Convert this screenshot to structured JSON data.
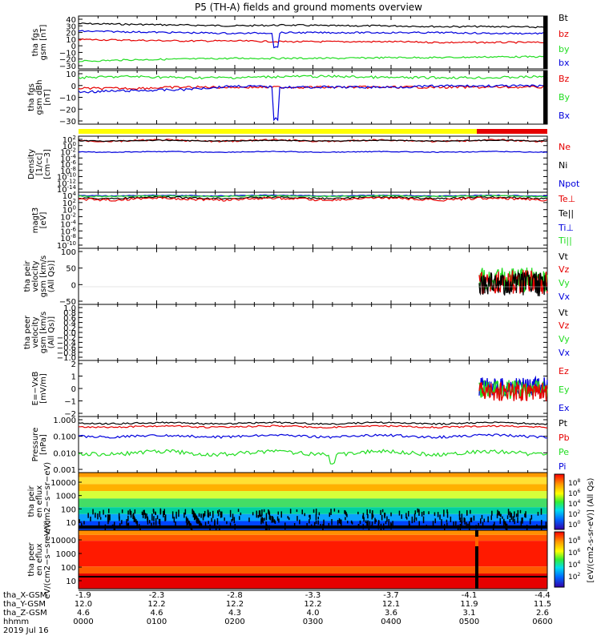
{
  "title": "P5 (TH-A) fields and ground moments overview",
  "colors": {
    "black": "#000000",
    "red": "#e60000",
    "green": "#22dd22",
    "blue": "#0000dd",
    "yellow": "#ffff00",
    "orange": "#ff9900"
  },
  "ephemeris": {
    "labels": [
      "tha_X-GSM",
      "tha_Y-GSM",
      "tha_Z-GSM",
      "hhmm",
      "2019 Jul 16"
    ],
    "rows": [
      [
        "-1.9",
        "-2.3",
        "-2.8",
        "-3.3",
        "-3.7",
        "-4.1",
        "-4.4"
      ],
      [
        "12.0",
        "12.2",
        "12.2",
        "12.2",
        "12.1",
        "11.9",
        "11.5"
      ],
      [
        "4.6",
        "4.6",
        "4.3",
        "4.0",
        "3.6",
        "3.1",
        "2.6"
      ],
      [
        "0000",
        "0100",
        "0200",
        "0300",
        "0400",
        "0500",
        "0600"
      ]
    ]
  },
  "spectro_colorbar": {
    "label": "[eV/(cm2-s-sr-eV)] (All Qs)",
    "ticks_top": [
      "10^8",
      "10^6",
      "10^4",
      "10^2",
      "10^0"
    ],
    "ticks_bottom": [
      "10^8",
      "10^6",
      "10^4",
      "10^2"
    ]
  },
  "chart_data": [
    {
      "type": "line",
      "ylabel": "tha fgs gsm [nT]",
      "ylim": [
        -30,
        40
      ],
      "yticks": [
        "40",
        "30",
        "20",
        "10",
        "0",
        "−10",
        "−20",
        "−30"
      ],
      "xlim_hhmm": [
        "0000",
        "0600"
      ],
      "series": [
        {
          "name": "Bt",
          "color": "#000000",
          "values": [
            30,
            29,
            28,
            27,
            28,
            27,
            27,
            26,
            26,
            25
          ]
        },
        {
          "name": "bz",
          "color": "#e60000",
          "values": [
            9,
            8,
            7,
            7,
            6,
            6,
            6,
            5,
            5,
            5
          ]
        },
        {
          "name": "by",
          "color": "#22dd22",
          "values": [
            -20,
            -18,
            -17,
            -16,
            -16,
            -16,
            -15,
            -15,
            -14,
            -14
          ]
        },
        {
          "name": "bx",
          "color": "#0000dd",
          "values": [
            20,
            19,
            18,
            17,
            18,
            18,
            18,
            18,
            17,
            17
          ]
        }
      ]
    },
    {
      "type": "line",
      "ylabel": "tha fgs gsm dBh [nT]",
      "ylim": [
        -35,
        10
      ],
      "yticks": [
        "10",
        "0",
        "−10",
        "−20",
        "−30"
      ],
      "series": [
        {
          "name": "Bz",
          "color": "#e60000",
          "values": [
            -5,
            -5,
            -4,
            -4,
            -4,
            -4,
            -4,
            -4,
            -4,
            -4
          ]
        },
        {
          "name": "By",
          "color": "#22dd22",
          "values": [
            4,
            5,
            4,
            4,
            5,
            5,
            4,
            4,
            4,
            5
          ]
        },
        {
          "name": "Bx",
          "color": "#0000dd",
          "values": [
            -8,
            -7,
            -6,
            -3,
            -4,
            -4,
            -4,
            -3,
            -3,
            -3
          ]
        }
      ]
    },
    {
      "type": "line",
      "ylabel": "Density [1/cc] [cm−3]",
      "scale": "log",
      "yticks": [
        "10^2",
        "10^0",
        "10^-2",
        "10^-4",
        "10^-6",
        "10^-8",
        "10^-10",
        "10^-12",
        "10^-14"
      ],
      "series": [
        {
          "name": "Ne",
          "color": "#e60000",
          "values": [
            1,
            1,
            1,
            1,
            1,
            1,
            1,
            1,
            1,
            1
          ]
        },
        {
          "name": "Ni",
          "color": "#000000",
          "values": [
            1,
            1,
            1,
            1,
            1,
            1,
            1,
            1,
            1,
            1
          ]
        },
        {
          "name": "Npot",
          "color": "#0000dd",
          "values": [
            0.001,
            0.001,
            0.001,
            0.001,
            0.001,
            0.001,
            0.001,
            0.001,
            0.001,
            0.001
          ]
        }
      ]
    },
    {
      "type": "line",
      "ylabel": "magt3 [eV]",
      "scale": "log",
      "yticks": [
        "10^4",
        "10^2",
        "10^0",
        "10^-2",
        "10^-4",
        "10^-6",
        "10^-8",
        "10^-10"
      ],
      "series": [
        {
          "name": "Te⊥",
          "color": "#e60000"
        },
        {
          "name": "Te||",
          "color": "#000000"
        },
        {
          "name": "Ti⊥",
          "color": "#0000dd"
        },
        {
          "name": "Ti||",
          "color": "#22dd22"
        }
      ]
    },
    {
      "type": "line",
      "ylabel": "tha peir velocity gsm [km/s (All Qs)]",
      "ylim": [
        -50,
        100
      ],
      "yticks": [
        "100",
        "50",
        "0",
        "−50"
      ],
      "series": [
        {
          "name": "Vt",
          "color": "#000000"
        },
        {
          "name": "Vz",
          "color": "#e60000"
        },
        {
          "name": "Vy",
          "color": "#22dd22"
        },
        {
          "name": "Vx",
          "color": "#0000dd"
        }
      ]
    },
    {
      "type": "line",
      "ylabel": "tha peer velocity gsm [km/s (All Qs)]",
      "ylim": [
        -1,
        1
      ],
      "yticks": [
        "1.0",
        "0.8",
        "0.6",
        "0.4",
        "0.2",
        "0.0",
        "−0.2",
        "−0.4",
        "−0.6",
        "−0.8",
        "−1.0"
      ],
      "series": [
        {
          "name": "Vt",
          "color": "#000000"
        },
        {
          "name": "Vz",
          "color": "#e60000"
        },
        {
          "name": "Vy",
          "color": "#22dd22"
        },
        {
          "name": "Vx",
          "color": "#0000dd"
        }
      ]
    },
    {
      "type": "line",
      "ylabel": "E=−VxB [mV/m]",
      "ylim": [
        -2,
        2
      ],
      "yticks": [
        "2",
        "1",
        "0",
        "−1",
        "−2"
      ],
      "series": [
        {
          "name": "Ez",
          "color": "#e60000"
        },
        {
          "name": "Ey",
          "color": "#22dd22"
        },
        {
          "name": "Ex",
          "color": "#0000dd"
        }
      ]
    },
    {
      "type": "line",
      "ylabel": "Pressure [nPa]",
      "scale": "log",
      "yticks": [
        "1.000",
        "0.100",
        "0.010",
        "0.001"
      ],
      "series": [
        {
          "name": "Pt",
          "color": "#000000"
        },
        {
          "name": "Pb",
          "color": "#e60000"
        },
        {
          "name": "Pe",
          "color": "#22dd22"
        },
        {
          "name": "Pi",
          "color": "#0000dd"
        }
      ]
    },
    {
      "type": "heatmap",
      "ylabel": "tha peir en eflux eV/(cm2−s−sr−eV)",
      "yticks": [
        "10000",
        "1000",
        "100",
        "10"
      ]
    },
    {
      "type": "heatmap",
      "ylabel": "tha peer en eflux eV/(cm2−s−sr−eV)",
      "yticks": [
        "10000",
        "1000",
        "100",
        "10"
      ]
    }
  ]
}
